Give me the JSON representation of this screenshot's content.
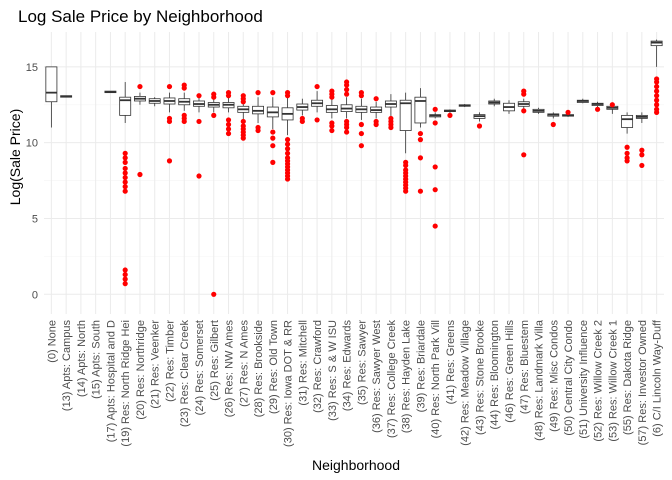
{
  "chart_data": {
    "type": "boxplot",
    "title": "Log Sale Price by Neighborhood",
    "xlabel": "Neighborhood",
    "ylabel": "Log(Sale Price)",
    "ylim": [
      -1.3,
      17.3
    ],
    "y_ticks": [
      0,
      5,
      10,
      15
    ],
    "grid": true,
    "legend": "none",
    "colors": {
      "box": "#333333",
      "outlier": "#ff0000",
      "grid_major": "#ebebeb",
      "grid_minor": "#f5f5f5",
      "background": "#ffffff"
    },
    "categories": [
      "(0) None",
      "(13) Apts: Campus",
      "(14) Apts: North",
      "(15) Apts: South",
      "(17) Apts: Hospital and D",
      "(19) Res: North Ridge Hei",
      "(20) Res: Northridge",
      "(21) Res: Veenker",
      "(22) Res: Timber",
      "(23) Res: Clear Creek",
      "(24) Res: Somerset",
      "(25) Res: Gilbert",
      "(26) Res: NW Ames",
      "(27) Res: N Ames",
      "(28) Res: Brookside",
      "(29) Res: Old Town",
      "(30) Res: Iowa DOT & RR",
      "(31) Res: Mitchell",
      "(32) Res: Crawford",
      "(33) Res: S & W ISU",
      "(34) Res: Edwards",
      "(35) Res: Sawyer",
      "(36) Res: Sawyer West",
      "(37) Res: College Creek",
      "(38) Res: Hayden Lake",
      "(39) Res: Briardale",
      "(40) Res: North Park Vill",
      "(41) Res: Greens",
      "(42) Res: Meadow Village",
      "(43) Res: Stone Brooke",
      "(44) Res: Bloomington",
      "(46) Res: Green Hills",
      "(47) Res: Bluestem",
      "(48) Res: Landmark Villa",
      "(49) Res: Misc Condos",
      "(50) Central City Condo",
      "(51) University Influence",
      "(52) Res: Willow Creek 2",
      "(53) Res: Willow Creek 1",
      "(55) Res: Dakota Ridge",
      "(57) Res: Investor Owned",
      "(6) C/I Lincoln Way-Duff"
    ],
    "boxes": [
      {
        "min": 11.0,
        "q1": 12.7,
        "median": 13.3,
        "q3": 15.0,
        "max": 15.0,
        "outliers": []
      },
      {
        "min": 13.0,
        "q1": 13.0,
        "median": 13.05,
        "q3": 13.1,
        "max": 13.1,
        "outliers": []
      },
      null,
      null,
      {
        "min": 13.3,
        "q1": 13.3,
        "median": 13.35,
        "q3": 13.4,
        "max": 13.4,
        "outliers": []
      },
      {
        "min": 11.3,
        "q1": 11.8,
        "median": 12.8,
        "q3": 13.0,
        "max": 14.0,
        "outliers": [
          9.3,
          9.0,
          8.7,
          8.3,
          8.0,
          7.7,
          7.4,
          7.1,
          6.8,
          1.6,
          1.3,
          1.0,
          0.7
        ]
      },
      {
        "min": 12.5,
        "q1": 12.75,
        "median": 12.9,
        "q3": 13.05,
        "max": 13.3,
        "outliers": [
          13.7,
          7.9
        ]
      },
      {
        "min": 12.4,
        "q1": 12.6,
        "median": 12.75,
        "q3": 12.9,
        "max": 13.0,
        "outliers": []
      },
      {
        "min": 12.0,
        "q1": 12.55,
        "median": 12.75,
        "q3": 12.95,
        "max": 13.3,
        "outliers": [
          13.7,
          11.6,
          11.4,
          8.8
        ]
      },
      {
        "min": 12.1,
        "q1": 12.5,
        "median": 12.7,
        "q3": 12.9,
        "max": 13.3,
        "outliers": [
          13.8,
          13.6,
          11.8,
          11.6,
          11.4
        ]
      },
      {
        "min": 12.0,
        "q1": 12.4,
        "median": 12.55,
        "q3": 12.75,
        "max": 13.0,
        "outliers": [
          13.1,
          11.4,
          7.8
        ]
      },
      {
        "min": 12.0,
        "q1": 12.35,
        "median": 12.5,
        "q3": 12.65,
        "max": 12.9,
        "outliers": [
          13.2,
          13.0,
          11.8,
          0.0
        ]
      },
      {
        "min": 12.0,
        "q1": 12.3,
        "median": 12.5,
        "q3": 12.65,
        "max": 13.0,
        "outliers": [
          13.3,
          13.1,
          11.5,
          11.2,
          10.9,
          10.6
        ]
      },
      {
        "min": 11.5,
        "q1": 12.0,
        "median": 12.2,
        "q3": 12.4,
        "max": 12.9,
        "outliers": [
          13.1,
          12.9,
          12.7,
          11.4,
          11.1,
          10.9,
          10.7,
          10.5,
          10.3
        ]
      },
      {
        "min": 11.3,
        "q1": 11.9,
        "median": 12.1,
        "q3": 12.4,
        "max": 13.0,
        "outliers": [
          13.3,
          11.0,
          10.8
        ]
      },
      {
        "min": 10.9,
        "q1": 11.7,
        "median": 12.0,
        "q3": 12.35,
        "max": 13.0,
        "outliers": [
          13.3,
          10.7,
          10.3,
          9.8,
          8.7
        ]
      },
      {
        "min": 10.5,
        "q1": 11.5,
        "median": 11.9,
        "q3": 12.3,
        "max": 13.0,
        "outliers": [
          13.3,
          13.1,
          10.2,
          9.9,
          9.6,
          9.3,
          9.0,
          8.8,
          8.6,
          8.4,
          8.2,
          8.0,
          7.8,
          7.6
        ]
      },
      {
        "min": 11.8,
        "q1": 12.15,
        "median": 12.35,
        "q3": 12.55,
        "max": 12.9,
        "outliers": [
          11.6,
          11.4
        ]
      },
      {
        "min": 12.0,
        "q1": 12.4,
        "median": 12.6,
        "q3": 12.8,
        "max": 13.4,
        "outliers": [
          13.7,
          11.5
        ]
      },
      {
        "min": 11.6,
        "q1": 12.0,
        "median": 12.2,
        "q3": 12.45,
        "max": 12.9,
        "outliers": [
          13.4,
          13.2,
          13.0,
          11.3,
          11.1,
          10.8
        ]
      },
      {
        "min": 11.6,
        "q1": 12.05,
        "median": 12.25,
        "q3": 12.5,
        "max": 13.0,
        "outliers": [
          14.0,
          13.8,
          13.5,
          13.2,
          11.4,
          11.2,
          11.0,
          10.7
        ]
      },
      {
        "min": 11.5,
        "q1": 12.0,
        "median": 12.2,
        "q3": 12.4,
        "max": 12.9,
        "outliers": [
          13.3,
          13.1,
          11.2,
          10.6,
          9.8
        ]
      },
      {
        "min": 11.6,
        "q1": 12.0,
        "median": 12.15,
        "q3": 12.35,
        "max": 12.7,
        "outliers": [
          12.9,
          11.4,
          11.2
        ]
      },
      {
        "min": 11.7,
        "q1": 12.35,
        "median": 12.55,
        "q3": 12.75,
        "max": 13.2,
        "outliers": [
          11.6,
          11.4,
          11.2,
          11.0
        ]
      },
      {
        "min": 9.3,
        "q1": 10.8,
        "median": 12.6,
        "q3": 12.8,
        "max": 13.3,
        "outliers": [
          8.7,
          8.5,
          8.2,
          8.0,
          7.8,
          7.6,
          7.4,
          7.2,
          7.0,
          6.8
        ]
      },
      {
        "min": 11.0,
        "q1": 11.3,
        "median": 12.75,
        "q3": 13.0,
        "max": 13.6,
        "outliers": [
          10.6,
          10.2,
          9.0,
          6.8
        ]
      },
      {
        "min": 11.6,
        "q1": 11.7,
        "median": 11.8,
        "q3": 11.85,
        "max": 12.0,
        "outliers": [
          12.2,
          11.3,
          8.4,
          6.9,
          4.5
        ]
      },
      {
        "min": 11.95,
        "q1": 12.05,
        "median": 12.1,
        "q3": 12.15,
        "max": 12.2,
        "outliers": [
          11.8
        ]
      },
      {
        "min": 12.35,
        "q1": 12.4,
        "median": 12.45,
        "q3": 12.5,
        "max": 12.55,
        "outliers": []
      },
      {
        "min": 11.4,
        "q1": 11.6,
        "median": 11.75,
        "q3": 11.85,
        "max": 12.0,
        "outliers": [
          11.1
        ]
      },
      {
        "min": 12.4,
        "q1": 12.55,
        "median": 12.65,
        "q3": 12.75,
        "max": 12.9,
        "outliers": []
      },
      {
        "min": 11.9,
        "q1": 12.1,
        "median": 12.35,
        "q3": 12.6,
        "max": 12.8,
        "outliers": []
      },
      {
        "min": 12.1,
        "q1": 12.4,
        "median": 12.55,
        "q3": 12.7,
        "max": 12.9,
        "outliers": [
          13.4,
          13.2,
          12.1,
          9.2
        ]
      },
      {
        "min": 11.9,
        "q1": 12.0,
        "median": 12.1,
        "q3": 12.2,
        "max": 12.3,
        "outliers": []
      },
      {
        "min": 11.6,
        "q1": 11.75,
        "median": 11.85,
        "q3": 11.9,
        "max": 12.0,
        "outliers": [
          11.2
        ]
      },
      {
        "min": 11.7,
        "q1": 11.75,
        "median": 11.8,
        "q3": 11.85,
        "max": 11.9,
        "outliers": [
          12.0
        ]
      },
      {
        "min": 12.6,
        "q1": 12.65,
        "median": 12.75,
        "q3": 12.8,
        "max": 12.9,
        "outliers": []
      },
      {
        "min": 12.3,
        "q1": 12.45,
        "median": 12.55,
        "q3": 12.6,
        "max": 12.7,
        "outliers": [
          12.2
        ]
      },
      {
        "min": 11.9,
        "q1": 12.2,
        "median": 12.3,
        "q3": 12.4,
        "max": 12.5,
        "outliers": [
          12.5
        ]
      },
      {
        "min": 10.6,
        "q1": 11.0,
        "median": 11.55,
        "q3": 11.8,
        "max": 12.0,
        "outliers": [
          9.7,
          9.3,
          9.0,
          8.8
        ]
      },
      {
        "min": 11.3,
        "q1": 11.6,
        "median": 11.7,
        "q3": 11.8,
        "max": 12.0,
        "outliers": [
          9.5,
          9.2,
          8.5
        ]
      },
      {
        "min": 15.0,
        "q1": 16.4,
        "median": 16.6,
        "q3": 16.7,
        "max": 16.8,
        "outliers": [
          14.2,
          14.0,
          13.7,
          13.4,
          13.1,
          12.8,
          12.5,
          12.2,
          12.0
        ]
      },
      null
    ]
  }
}
